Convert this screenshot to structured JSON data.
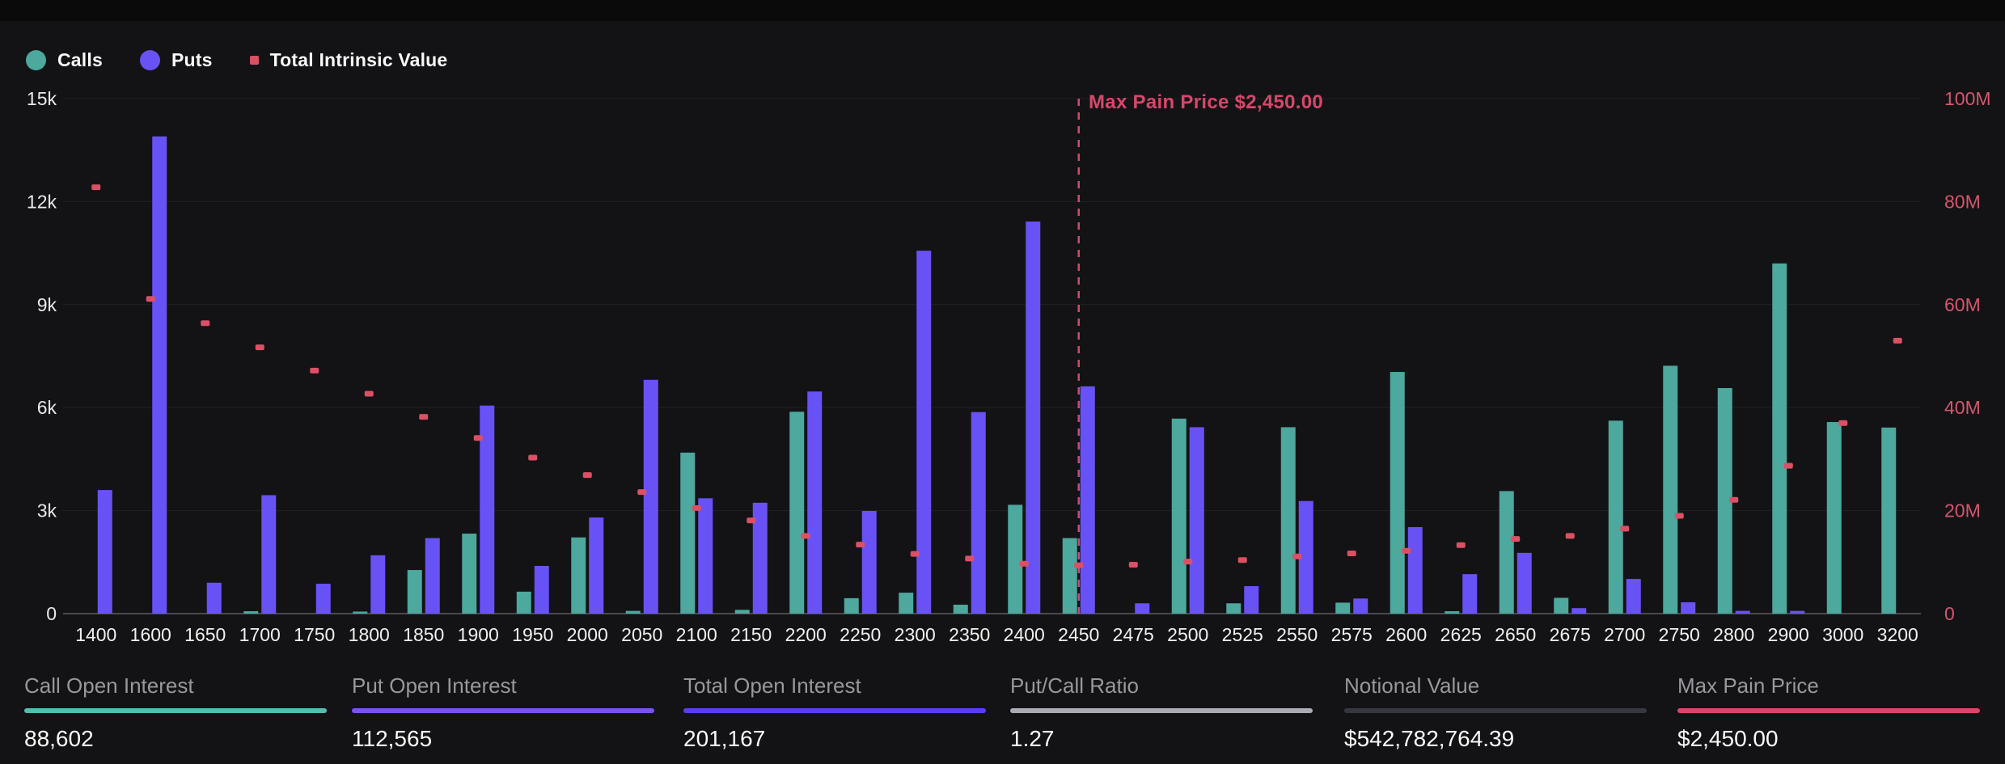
{
  "legend": {
    "items": [
      {
        "label": "Calls",
        "color": "#4DA89E",
        "shape": "circle"
      },
      {
        "label": "Puts",
        "color": "#6952F5",
        "shape": "circle"
      },
      {
        "label": "Total Intrinsic Value",
        "color": "#DB5065",
        "shape": "square"
      }
    ]
  },
  "chart_data": {
    "type": "bar",
    "title": "",
    "categories": [
      "1400",
      "1600",
      "1650",
      "1700",
      "1750",
      "1800",
      "1850",
      "1900",
      "1950",
      "2000",
      "2050",
      "2100",
      "2150",
      "2200",
      "2250",
      "2300",
      "2350",
      "2400",
      "2450",
      "2475",
      "2500",
      "2525",
      "2550",
      "2575",
      "2600",
      "2625",
      "2650",
      "2675",
      "2700",
      "2750",
      "2800",
      "2900",
      "3000",
      "3200"
    ],
    "series": [
      {
        "name": "Calls",
        "type": "bar",
        "axis": "left",
        "color": "#4DA89E",
        "values": [
          0,
          0,
          0,
          70,
          0,
          60,
          1270,
          2330,
          640,
          2220,
          80,
          4690,
          110,
          5880,
          450,
          610,
          260,
          3170,
          2200,
          0,
          5680,
          300,
          5430,
          320,
          7040,
          70,
          3570,
          460,
          5620,
          7220,
          6570,
          10200,
          5580,
          5420
        ]
      },
      {
        "name": "Puts",
        "type": "bar",
        "axis": "left",
        "color": "#6952F5",
        "values": [
          3600,
          13900,
          900,
          3450,
          870,
          1700,
          2200,
          6060,
          1390,
          2800,
          6810,
          3360,
          3230,
          6470,
          2990,
          10570,
          5870,
          11420,
          6620,
          300,
          5430,
          800,
          3280,
          440,
          2520,
          1150,
          1770,
          160,
          1010,
          330,
          80,
          80,
          0,
          0
        ]
      },
      {
        "name": "Total Intrinsic Value",
        "type": "scatter",
        "axis": "right",
        "color": "#DB5065",
        "values_millions": [
          82.8,
          61.1,
          56.4,
          51.7,
          47.2,
          42.7,
          38.2,
          34.1,
          30.3,
          26.9,
          23.6,
          20.5,
          18.1,
          15.1,
          13.4,
          11.6,
          10.7,
          9.7,
          9.4,
          9.5,
          10.1,
          10.4,
          11.1,
          11.7,
          12.2,
          13.3,
          14.5,
          15.1,
          16.5,
          19.0,
          22.1,
          28.7,
          37.0,
          53.0
        ]
      }
    ],
    "left_axis": {
      "min": 0,
      "max": 15000,
      "ticks": [
        "0",
        "3k",
        "6k",
        "9k",
        "12k",
        "15k"
      ],
      "color": "#e9e9eb"
    },
    "right_axis": {
      "min": 0,
      "max": 100,
      "unit": "M",
      "ticks": [
        "0",
        "20M",
        "40M",
        "60M",
        "80M",
        "100M"
      ],
      "color": "#D5566E"
    },
    "x_axis": {
      "label_color": "#f0f0f0"
    },
    "grid": true,
    "legend_position": "top-left",
    "annotation": {
      "label": "Max Pain Price $2,450.00",
      "category": "2450",
      "color": "#D7476B"
    }
  },
  "stats": [
    {
      "label": "Call Open Interest",
      "value": "88,602",
      "underline_color": "#4FBFAE"
    },
    {
      "label": "Put Open Interest",
      "value": "112,565",
      "underline_color": "#7B52EE"
    },
    {
      "label": "Total Open Interest",
      "value": "201,167",
      "underline_color": "#5B3DF5"
    },
    {
      "label": "Put/Call Ratio",
      "value": "1.27",
      "underline_color": "#A9ADB2"
    },
    {
      "label": "Notional Value",
      "value": "$542,782,764.39",
      "underline_color": "#35383C"
    },
    {
      "label": "Max Pain Price",
      "value": "$2,450.00",
      "underline_color": "#D8466A"
    }
  ],
  "colors": {
    "background": "#131315",
    "top_strip": "#0a0a0b",
    "gridline": "#222226",
    "axis_line": "#4a4a4e"
  }
}
